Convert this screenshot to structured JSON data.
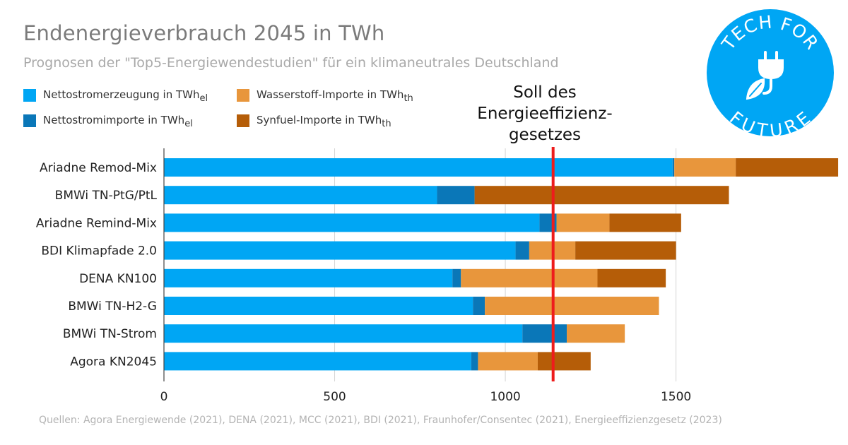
{
  "chart_data": {
    "type": "bar",
    "orientation": "horizontal",
    "stacked": true,
    "title": "Endenergieverbrauch 2045 in TWh",
    "subtitle": "Prognosen der \"Top5-Energiewendestudien\" für ein klimaneutrales Deutschland",
    "categories": [
      "Ariadne Remod-Mix",
      "BMWi TN-PtG/PtL",
      "Ariadne Remind-Mix",
      "BDI Klimapfade 2.0",
      "DENA KN100",
      "BMWi TN-H2-G",
      "BMWi TN-Strom",
      "Agora KN2045"
    ],
    "series": [
      {
        "name": "Nettostromerzeugung in TWh",
        "unit_sub": "el",
        "color": "#00a6f4",
        "values": [
          1490,
          800,
          1100,
          1030,
          845,
          905,
          1050,
          900
        ]
      },
      {
        "name": "Nettostromimporte in TWh",
        "unit_sub": "el",
        "color": "#0a77b8",
        "values": [
          5,
          110,
          50,
          40,
          25,
          35,
          130,
          20
        ]
      },
      {
        "name": "Wasserstoff-Importe in TWh",
        "unit_sub": "th",
        "color": "#e8963c",
        "values": [
          180,
          0,
          155,
          135,
          400,
          510,
          170,
          175
        ]
      },
      {
        "name": "Synfuel-Importe in TWh",
        "unit_sub": "th",
        "color": "#b55d08",
        "values": [
          300,
          745,
          210,
          295,
          200,
          0,
          0,
          155
        ]
      }
    ],
    "xlim": [
      0,
      1950
    ],
    "x_ticks": [
      0,
      500,
      1000,
      1500
    ],
    "x_tick_labels": [
      "0",
      "500",
      "1000",
      "1500"
    ],
    "grid": true,
    "legend_position": "top-left",
    "reference_line": {
      "value": 1140,
      "label": "Soll des Energieeffizienz-gesetzes",
      "color": "#ee1c1c"
    }
  },
  "soll_label_lines": [
    "Soll des",
    "Energieeffizienz-",
    "gesetzes"
  ],
  "source_text": "Quellen: Agora Energiewende (2021), DENA (2021), MCC (2021), BDI (2021), Fraunhofer/Consentec (2021), Energieeffizienzgesetz (2023)",
  "logo": {
    "line1": "TECH FOR",
    "line2": "FUTURE",
    "icon": "leaf-plug-icon",
    "color": "#00a6f4"
  }
}
